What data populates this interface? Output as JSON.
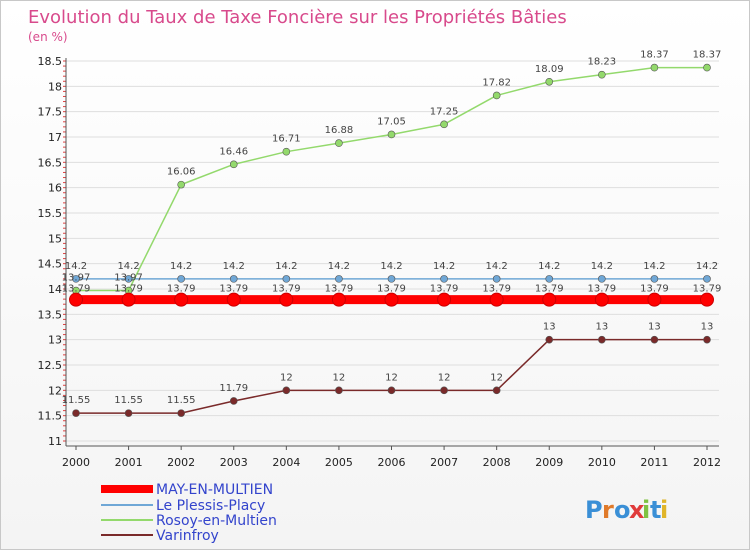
{
  "chart_data": {
    "type": "line",
    "title": "Evolution du Taux de Taxe Foncière sur les Propriétés Bâties",
    "subtitle": "(en %)",
    "categories": [
      "2000",
      "2001",
      "2002",
      "2003",
      "2004",
      "2005",
      "2006",
      "2007",
      "2008",
      "2009",
      "2010",
      "2011",
      "2012"
    ],
    "ylim": [
      11,
      18.5
    ],
    "yticks": [
      11,
      11.5,
      12,
      12.5,
      13,
      13.5,
      14,
      14.5,
      15,
      15.5,
      16,
      16.5,
      17,
      17.5,
      18,
      18.5
    ],
    "ytick_labels": [
      "11",
      "11.5",
      "12",
      "12.5",
      "13",
      "13.5",
      "14",
      "14.5",
      "15",
      "15.5",
      "16",
      "16.5",
      "17",
      "17.5",
      "18",
      "18.5"
    ],
    "series": [
      {
        "name": "MAY-EN-MULTIEN",
        "color": "#ff0000",
        "values": [
          13.79,
          13.79,
          13.79,
          13.79,
          13.79,
          13.79,
          13.79,
          13.79,
          13.79,
          13.79,
          13.79,
          13.79,
          13.79
        ],
        "labels": [
          "13.79",
          "13.79",
          "13.79",
          "13.79",
          "13.79",
          "13.79",
          "13.79",
          "13.79",
          "13.79",
          "13.79",
          "13.79",
          "13.79",
          "13.79"
        ]
      },
      {
        "name": "Le Plessis-Placy",
        "color": "#6fa7d6",
        "values": [
          14.2,
          14.2,
          14.2,
          14.2,
          14.2,
          14.2,
          14.2,
          14.2,
          14.2,
          14.2,
          14.2,
          14.2,
          14.2
        ],
        "labels": [
          "14.2",
          "14.2",
          "14.2",
          "14.2",
          "14.2",
          "14.2",
          "14.2",
          "14.2",
          "14.2",
          "14.2",
          "14.2",
          "14.2",
          "14.2"
        ]
      },
      {
        "name": "Rosoy-en-Multien",
        "color": "#93d96c",
        "values": [
          13.97,
          13.97,
          16.06,
          16.46,
          16.71,
          16.88,
          17.05,
          17.25,
          17.82,
          18.09,
          18.23,
          18.37,
          18.37
        ],
        "labels": [
          "13.97",
          "13.97",
          "16.06",
          "16.46",
          "16.71",
          "16.88",
          "17.05",
          "17.25",
          "17.82",
          "18.09",
          "18.23",
          "18.37",
          "18.37"
        ]
      },
      {
        "name": "Varinfroy",
        "color": "#7a2a2a",
        "values": [
          11.55,
          11.55,
          11.55,
          11.79,
          12,
          12,
          12,
          12,
          12,
          13,
          13,
          13,
          13
        ],
        "labels": [
          "11.55",
          "11.55",
          "11.55",
          "11.79",
          "12",
          "12",
          "12",
          "12",
          "12",
          "13",
          "13",
          "13",
          "13"
        ]
      }
    ],
    "legend": [
      "MAY-EN-MULTIEN",
      "Le Plessis-Placy",
      "Rosoy-en-Multien",
      "Varinfroy"
    ],
    "legend_text_color": "#3344cc",
    "logo_text": "Proxiti"
  }
}
